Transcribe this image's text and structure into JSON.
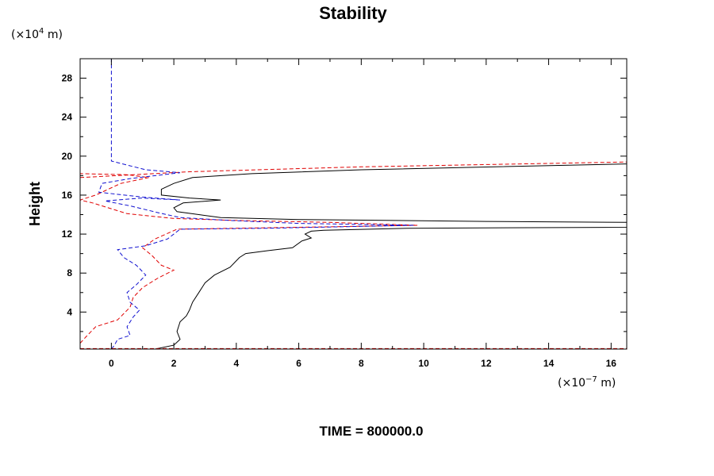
{
  "chart_data": {
    "type": "line",
    "title": "Stability",
    "ylabel": "Height",
    "xlabel": "",
    "y_unit": {
      "prefix": "(×10",
      "exp": "4",
      "suffix": " m)"
    },
    "x_unit": {
      "prefix": "(×10",
      "exp": "−7",
      "suffix": " m)"
    },
    "footer": "TIME = 800000.0",
    "xlim": [
      -1,
      16.5
    ],
    "ylim": [
      0.2,
      30
    ],
    "x_major_ticks": [
      0,
      2,
      4,
      6,
      8,
      10,
      12,
      14,
      16
    ],
    "x_tick_labels": [
      "0",
      "2",
      "4",
      "6",
      "8",
      "10",
      "12",
      "14",
      "16"
    ],
    "y_major_ticks": [
      4,
      8,
      12,
      16,
      20,
      24,
      28
    ],
    "y_tick_labels": [
      "4",
      "8",
      "12",
      "16",
      "20",
      "24",
      "28"
    ],
    "grid": false,
    "series": [
      {
        "color": "#000000",
        "dash": "solid",
        "points": [
          [
            1.4,
            0.2
          ],
          [
            2.0,
            0.6
          ],
          [
            2.2,
            1.2
          ],
          [
            2.1,
            2.0
          ],
          [
            2.2,
            3.0
          ],
          [
            2.4,
            3.6
          ],
          [
            2.5,
            4.2
          ],
          [
            2.6,
            5.0
          ],
          [
            2.8,
            6.0
          ],
          [
            3.0,
            7.0
          ],
          [
            3.3,
            7.8
          ],
          [
            3.8,
            8.6
          ],
          [
            4.1,
            9.6
          ],
          [
            4.3,
            10.0
          ],
          [
            5.0,
            10.3
          ],
          [
            5.8,
            10.6
          ],
          [
            6.1,
            11.3
          ],
          [
            6.4,
            11.6
          ],
          [
            6.2,
            12.0
          ],
          [
            6.4,
            12.3
          ],
          [
            6.8,
            12.4
          ],
          [
            9.5,
            12.6
          ],
          [
            16.5,
            12.7
          ],
          [
            16.5,
            13.2
          ],
          [
            12.0,
            13.3
          ],
          [
            6.0,
            13.5
          ],
          [
            3.5,
            13.7
          ],
          [
            2.8,
            14.0
          ],
          [
            2.1,
            14.3
          ],
          [
            2.0,
            14.7
          ],
          [
            2.3,
            15.2
          ],
          [
            3.5,
            15.5
          ],
          [
            2.5,
            15.7
          ],
          [
            1.6,
            16.0
          ],
          [
            1.6,
            16.6
          ],
          [
            2.0,
            17.2
          ],
          [
            2.6,
            17.8
          ],
          [
            4.5,
            18.2
          ],
          [
            8.0,
            18.6
          ],
          [
            16.5,
            19.2
          ]
        ]
      },
      {
        "color": "#e00000",
        "dash": "dashed",
        "points": [
          [
            -1.0,
            0.8
          ],
          [
            -0.8,
            1.5
          ],
          [
            -0.5,
            2.5
          ],
          [
            0.2,
            3.2
          ],
          [
            0.6,
            4.5
          ],
          [
            0.7,
            5.5
          ],
          [
            1.0,
            6.5
          ],
          [
            1.5,
            7.5
          ],
          [
            2.0,
            8.3
          ],
          [
            1.6,
            8.8
          ],
          [
            1.3,
            9.8
          ],
          [
            1.0,
            10.6
          ],
          [
            1.4,
            11.5
          ],
          [
            2.1,
            12.5
          ],
          [
            6.0,
            12.7
          ],
          [
            9.8,
            12.9
          ],
          [
            7.0,
            13.2
          ],
          [
            4.0,
            13.4
          ],
          [
            2.0,
            13.6
          ],
          [
            0.5,
            14.1
          ],
          [
            0.1,
            14.5
          ],
          [
            -0.6,
            15.2
          ],
          [
            -1.0,
            15.5
          ],
          [
            -0.5,
            16.0
          ],
          [
            0.3,
            17.2
          ],
          [
            1.2,
            17.8
          ],
          [
            0.5,
            18.1
          ],
          [
            -1.0,
            18.2
          ]
        ]
      },
      {
        "color": "#e00000",
        "dash": "dashed",
        "points": [
          [
            -1.0,
            17.8
          ],
          [
            2.5,
            18.4
          ],
          [
            8.0,
            18.9
          ],
          [
            16.5,
            19.4
          ]
        ]
      },
      {
        "color": "#1010d0",
        "dash": "dashed",
        "points": [
          [
            0.0,
            0.2
          ],
          [
            0.1,
            0.6
          ],
          [
            0.2,
            1.2
          ],
          [
            0.6,
            1.6
          ],
          [
            0.5,
            2.5
          ],
          [
            0.7,
            3.5
          ],
          [
            0.9,
            4.2
          ],
          [
            0.6,
            5.0
          ],
          [
            0.5,
            6.0
          ],
          [
            0.8,
            6.8
          ],
          [
            1.1,
            7.8
          ],
          [
            0.8,
            8.8
          ],
          [
            0.4,
            9.6
          ],
          [
            0.2,
            10.4
          ],
          [
            1.1,
            10.8
          ],
          [
            1.8,
            11.5
          ],
          [
            2.2,
            12.5
          ],
          [
            5.0,
            12.6
          ],
          [
            9.7,
            12.9
          ],
          [
            6.0,
            13.1
          ],
          [
            3.8,
            13.4
          ],
          [
            2.2,
            13.7
          ],
          [
            1.5,
            14.2
          ],
          [
            0.6,
            14.9
          ],
          [
            -0.2,
            15.4
          ],
          [
            1.0,
            15.7
          ],
          [
            2.2,
            15.5
          ],
          [
            1.0,
            15.8
          ],
          [
            -0.4,
            16.3
          ],
          [
            -0.3,
            17.2
          ],
          [
            0.6,
            17.7
          ],
          [
            2.2,
            18.3
          ],
          [
            1.1,
            18.6
          ],
          [
            0.0,
            19.5
          ],
          [
            0.0,
            30.0
          ]
        ]
      },
      {
        "color": "#000000",
        "dash": "solid",
        "points": [
          [
            -1.0,
            0.2
          ],
          [
            16.5,
            0.2
          ]
        ]
      },
      {
        "color": "#e00000",
        "dash": "dashed",
        "points": [
          [
            -1.0,
            0.25
          ],
          [
            16.5,
            0.25
          ]
        ]
      }
    ]
  }
}
